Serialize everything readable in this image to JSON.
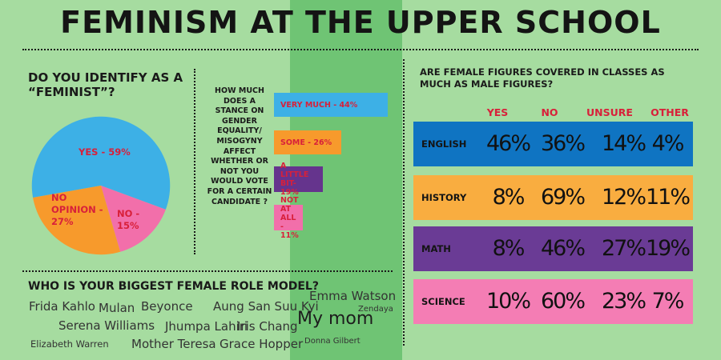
{
  "title": "FEMINISM AT THE UPPER SCHOOL",
  "feminist": {
    "question": "DO YOU IDENTIFY AS A “FEMINIST”?",
    "slices": [
      {
        "label": "YES - 59%",
        "value": 59,
        "color": "#3db0e6"
      },
      {
        "label": "NO OPINION - 27%",
        "value": 27,
        "color": "#f79a2c"
      },
      {
        "label": "NO - 15%",
        "value": 15,
        "color": "#f26faa"
      }
    ]
  },
  "gender_equality": {
    "question": "HOW MUCH DOES A STANCE ON GENDER EQUALITY/ MISOGYNY AFFECT WHETHER OR NOT YOU WOULD VOTE FOR A CERTAIN CANDIDATE ?",
    "bars": [
      {
        "label": "VERY MUCH - 44%",
        "value": 44,
        "color": "#3db0e6"
      },
      {
        "label": "SOME - 26%",
        "value": 26,
        "color": "#f79a2c"
      },
      {
        "label": "A LITTLE BIT- 19%",
        "value": 19,
        "color": "#65348d"
      },
      {
        "label": "NOT AT ALL - 11%",
        "value": 11,
        "color": "#f26faa"
      }
    ]
  },
  "female_figures": {
    "question": "ARE FEMALE FIGURES COVERED IN CLASSES AS MUCH AS MALE FIGURES?",
    "columns": [
      "YES",
      "NO",
      "UNSURE",
      "OTHER"
    ],
    "rows": [
      {
        "subject": "ENGLISH",
        "values": [
          "46%",
          "36%",
          "14%",
          "4%"
        ],
        "color": "#0f74c2"
      },
      {
        "subject": "HISTORY",
        "values": [
          "8%",
          "69%",
          "12%",
          "11%"
        ],
        "color": "#f9ad40"
      },
      {
        "subject": "MATH",
        "values": [
          "8%",
          "46%",
          "27%",
          "19%"
        ],
        "color": "#6a3b95"
      },
      {
        "subject": "SCIENCE",
        "values": [
          "10%",
          "60%",
          "23%",
          "7%"
        ],
        "color": "#f47db4"
      }
    ]
  },
  "role_models": {
    "question": "WHO IS YOUR BIGGEST FEMALE ROLE MODEL?",
    "names": [
      "Frida Kahlo",
      "Mulan",
      "Beyonce",
      "Aung San Suu Kyi",
      "Emma Watson",
      "Zendaya",
      "Serena Williams",
      "Jhumpa Lahiri",
      "Iris Chang",
      "My mom",
      "Elizabeth Warren",
      "Mother Teresa",
      "Grace Hopper",
      "Donna Gilbert"
    ]
  },
  "colors": {
    "background": "#a6dca0",
    "center_band": "#6fc474",
    "label_red": "#d8203a"
  }
}
